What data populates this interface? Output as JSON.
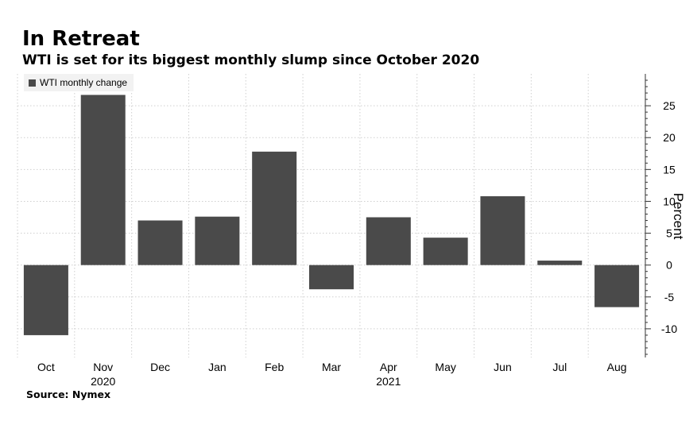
{
  "title": "In Retreat",
  "subtitle": "WTI is set for its biggest monthly slump since October 2020",
  "source": "Source: Nymex",
  "colors": {
    "bar": "#4a4a4a",
    "grid": "#cfcfcf",
    "axis": "#333333",
    "legend_bg": "#f2f2f2"
  },
  "chart_data": {
    "type": "bar",
    "title": "In Retreat",
    "subtitle": "WTI is set for its biggest monthly slump since October 2020",
    "categories": [
      "Oct",
      "Nov",
      "Dec",
      "Jan",
      "Feb",
      "Mar",
      "Apr",
      "May",
      "Jun",
      "Jul",
      "Aug"
    ],
    "year_labels": [
      {
        "label": "2020",
        "category": "Nov"
      },
      {
        "label": "2021",
        "category": "Apr"
      }
    ],
    "series": [
      {
        "name": "WTI monthly change",
        "values": [
          -11.0,
          26.7,
          7.0,
          7.6,
          17.8,
          -3.8,
          7.5,
          4.3,
          10.8,
          0.7,
          -6.6
        ]
      }
    ],
    "ylabel": "Percent",
    "ylim": [
      -14.5,
      30
    ],
    "yticks": [
      -10,
      -5,
      0,
      5,
      10,
      15,
      20,
      25
    ],
    "grid": true,
    "legend_position": "top-left",
    "y_axis_side": "right"
  }
}
